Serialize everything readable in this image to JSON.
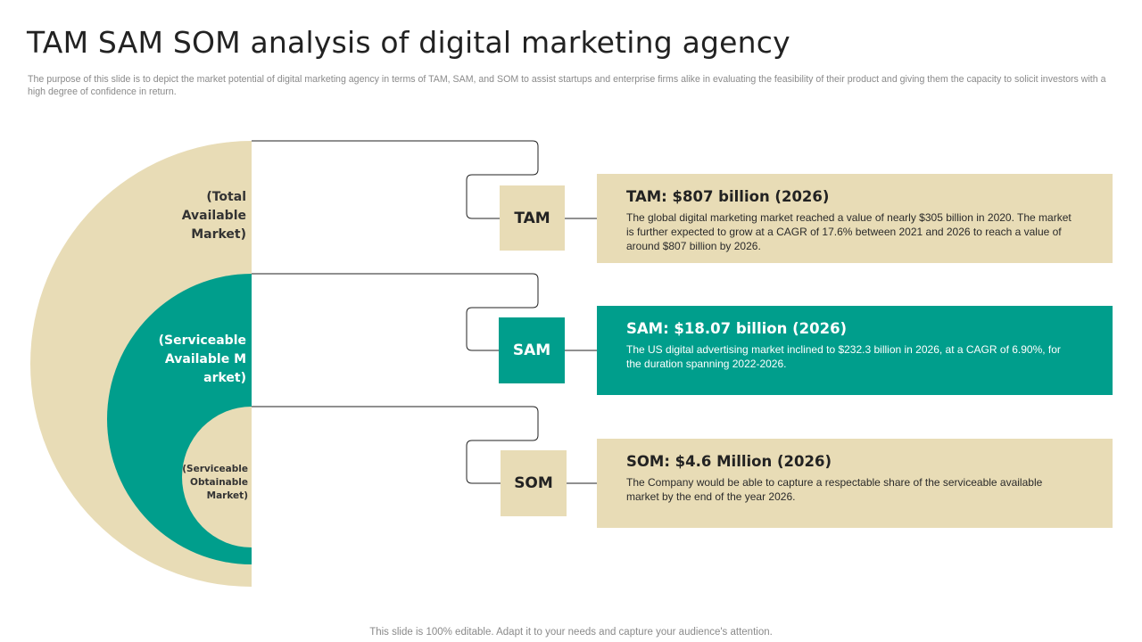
{
  "page": {
    "title": "TAM SAM SOM analysis of digital marketing agency",
    "description": "The purpose of this slide is to depict the market potential of digital marketing agency in terms of TAM,  SAM,  and SOM to assist startups and enterprise firms alike in evaluating the feasibility of their product and giving them the capacity to solicit investors with a high degree of confidence in return.",
    "footer": "This slide is 100% editable. Adapt it to your needs and capture your audience's attention."
  },
  "rings": {
    "tam": "(Total Available Market)",
    "sam": "(Serviceable Available Market)",
    "som": "(Serviceable Obtainable Market)"
  },
  "tags": {
    "tam": "TAM",
    "sam": "SAM",
    "som": "SOM"
  },
  "panels": {
    "tam": {
      "heading": "TAM: $807 billion (2026)",
      "body": "The global digital marketing market reached a value of nearly $305 billion in 2020. The market is further expected to grow at a CAGR of 17.6% between 2021 and 2026 to reach a value of around $807 billion by 2026."
    },
    "sam": {
      "heading": "SAM: $18.07 billion (2026)",
      "body": "The US digital advertising market inclined to $232.3 billion in 2026, at a CAGR of 6.90%, for the duration spanning 2022-2026."
    },
    "som": {
      "heading": "SOM: $4.6 Million (2026)",
      "body": "The Company would be able to capture a respectable share of the serviceable available market by the end of the year 2026."
    }
  },
  "colors": {
    "beige": "#e8dcb6",
    "teal": "#009e8c",
    "text": "#222222",
    "muted": "#8a8a8a"
  }
}
